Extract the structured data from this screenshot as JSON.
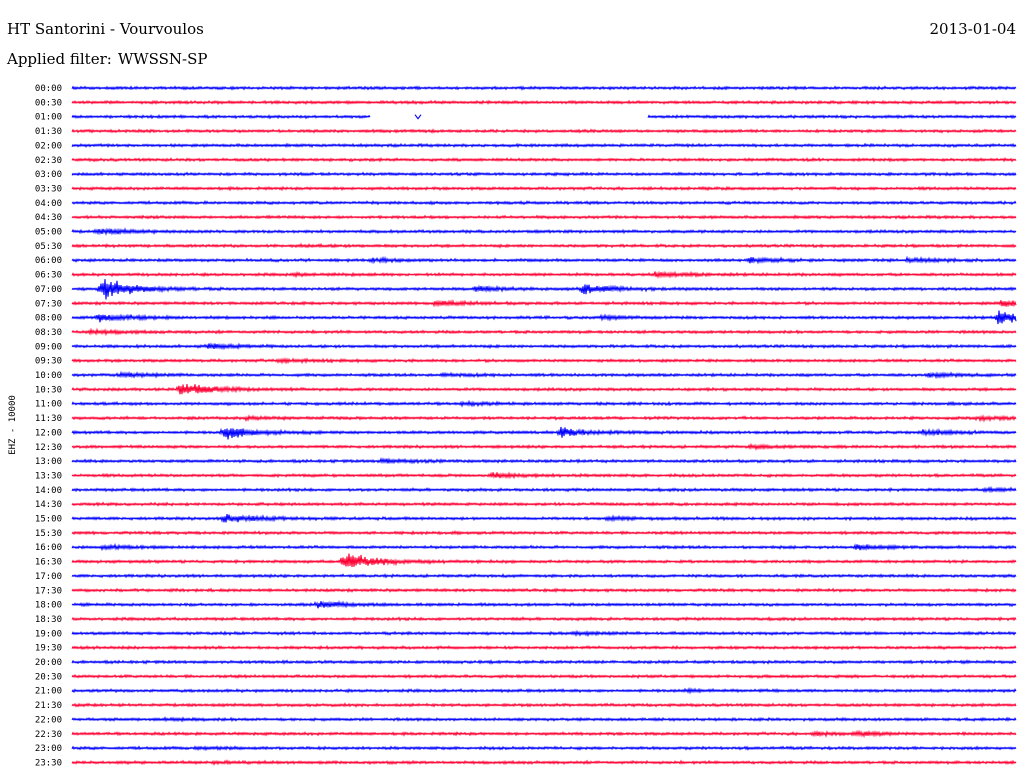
{
  "header": {
    "station": "HT Santorini - Vourvoulos",
    "date": "2013-01-04",
    "filter_prefix": "Applied filter:",
    "filter_name": "WWSSN-SP"
  },
  "chart_data": {
    "type": "line",
    "ylabel": "EHZ - 10000",
    "rows": [
      "00:00",
      "00:30",
      "01:00",
      "01:30",
      "02:00",
      "02:30",
      "03:00",
      "03:30",
      "04:00",
      "04:30",
      "05:00",
      "05:30",
      "06:00",
      "06:30",
      "07:00",
      "07:30",
      "08:00",
      "08:30",
      "09:00",
      "09:30",
      "10:00",
      "10:30",
      "11:00",
      "11:30",
      "12:00",
      "12:30",
      "13:00",
      "13:30",
      "14:00",
      "14:30",
      "15:00",
      "15:30",
      "16:00",
      "16:30",
      "17:00",
      "17:30",
      "18:00",
      "18:30",
      "19:00",
      "19:30",
      "20:00",
      "20:30",
      "21:00",
      "21:30",
      "22:00",
      "22:30",
      "23:00",
      "23:30"
    ],
    "colors": [
      "#0000ff",
      "#ff0033"
    ],
    "row_minutes": 30,
    "data_gaps": [
      {
        "row": "01:00",
        "start_min": 9.5,
        "end_min": 18.3
      }
    ],
    "events": [
      {
        "row": "05:00",
        "min": 0.8,
        "amp": 0.6
      },
      {
        "row": "05:30",
        "min": 7.2,
        "amp": 0.2
      },
      {
        "row": "06:00",
        "min": 9.5,
        "amp": 0.3
      },
      {
        "row": "06:00",
        "min": 21.5,
        "amp": 0.5
      },
      {
        "row": "06:00",
        "min": 26.5,
        "amp": 0.4
      },
      {
        "row": "06:30",
        "min": 7.0,
        "amp": 0.2
      },
      {
        "row": "06:30",
        "min": 18.5,
        "amp": 0.5
      },
      {
        "row": "07:00",
        "min": 0.9,
        "amp": 2.6
      },
      {
        "row": "07:00",
        "min": 12.8,
        "amp": 0.6
      },
      {
        "row": "07:00",
        "min": 16.2,
        "amp": 1.1
      },
      {
        "row": "07:30",
        "min": 11.5,
        "amp": 0.5
      },
      {
        "row": "07:30",
        "min": 29.5,
        "amp": 0.7
      },
      {
        "row": "08:00",
        "min": 0.8,
        "amp": 1.0
      },
      {
        "row": "08:00",
        "min": 16.8,
        "amp": 0.3
      },
      {
        "row": "08:00",
        "min": 29.4,
        "amp": 1.6
      },
      {
        "row": "08:30",
        "min": 0.5,
        "amp": 0.4
      },
      {
        "row": "09:00",
        "min": 4.3,
        "amp": 0.5
      },
      {
        "row": "09:30",
        "min": 6.5,
        "amp": 0.3
      },
      {
        "row": "10:00",
        "min": 1.5,
        "amp": 0.5
      },
      {
        "row": "10:00",
        "min": 11.7,
        "amp": 0.3
      },
      {
        "row": "10:00",
        "min": 27.2,
        "amp": 0.4
      },
      {
        "row": "10:30",
        "min": 3.4,
        "amp": 1.6
      },
      {
        "row": "11:00",
        "min": 12.3,
        "amp": 0.3
      },
      {
        "row": "11:30",
        "min": 5.5,
        "amp": 0.3
      },
      {
        "row": "11:30",
        "min": 28.8,
        "amp": 0.4
      },
      {
        "row": "12:00",
        "min": 4.8,
        "amp": 1.5
      },
      {
        "row": "12:00",
        "min": 15.5,
        "amp": 1.0
      },
      {
        "row": "12:00",
        "min": 27.0,
        "amp": 0.5
      },
      {
        "row": "12:30",
        "min": 21.5,
        "amp": 0.3
      },
      {
        "row": "13:00",
        "min": 9.8,
        "amp": 0.4
      },
      {
        "row": "13:30",
        "min": 13.3,
        "amp": 0.5
      },
      {
        "row": "14:00",
        "min": 29.0,
        "amp": 0.3
      },
      {
        "row": "15:00",
        "min": 4.8,
        "amp": 1.0
      },
      {
        "row": "15:00",
        "min": 17.0,
        "amp": 0.3
      },
      {
        "row": "16:00",
        "min": 0.9,
        "amp": 0.4
      },
      {
        "row": "16:00",
        "min": 24.9,
        "amp": 0.5
      },
      {
        "row": "16:30",
        "min": 8.6,
        "amp": 2.2
      },
      {
        "row": "18:00",
        "min": 7.8,
        "amp": 0.7
      },
      {
        "row": "19:00",
        "min": 16.0,
        "amp": 0.3
      },
      {
        "row": "21:00",
        "min": 19.5,
        "amp": 0.2
      },
      {
        "row": "22:00",
        "min": 2.9,
        "amp": 0.2
      },
      {
        "row": "22:30",
        "min": 23.5,
        "amp": 0.3
      },
      {
        "row": "22:30",
        "min": 25.0,
        "amp": 0.3
      },
      {
        "row": "23:00",
        "min": 4.0,
        "amp": 0.2
      },
      {
        "row": "23:30",
        "min": 4.5,
        "amp": 0.2
      }
    ]
  }
}
